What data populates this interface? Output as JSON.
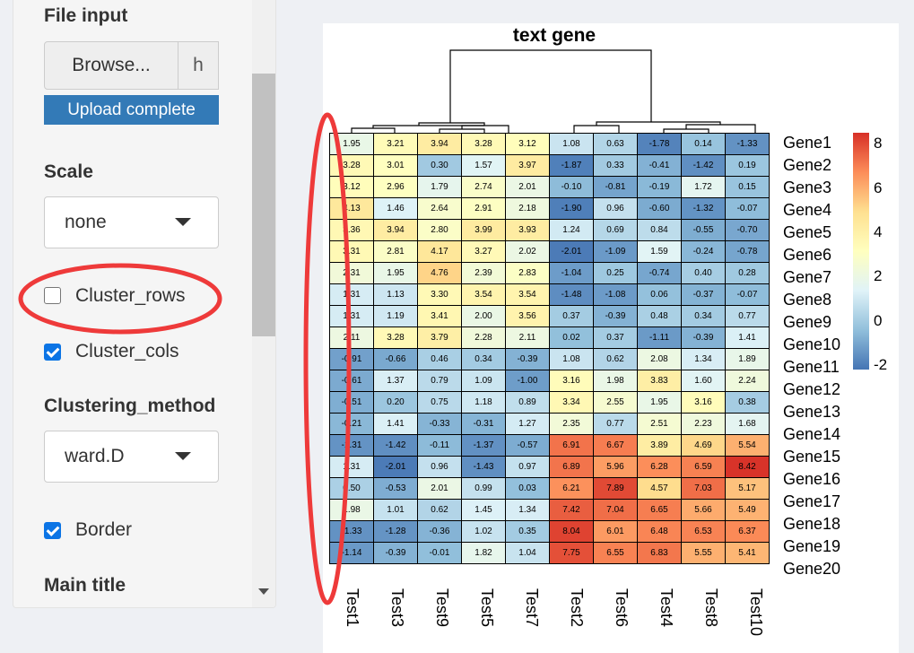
{
  "sidebar": {
    "file_input_label": "File input",
    "browse_label": "Browse...",
    "file_text": "h",
    "upload_status": "Upload complete",
    "scale_label": "Scale",
    "scale_value": "none",
    "cluster_rows_label": "Cluster_rows",
    "cluster_rows_checked": false,
    "cluster_cols_label": "Cluster_cols",
    "cluster_cols_checked": true,
    "clustering_method_label": "Clustering_method",
    "clustering_method_value": "ward.D",
    "border_label": "Border",
    "border_checked": true,
    "main_title_label": "Main title"
  },
  "colors": {
    "low": "#4575b4",
    "mid": "#ffffbf",
    "high": "#d73027",
    "annotation": "#ee3a3a"
  },
  "heatmap": {
    "title": "text gene",
    "columns": [
      "Test1",
      "Test3",
      "Test9",
      "Test5",
      "Test7",
      "Test2",
      "Test6",
      "Test4",
      "Test8",
      "Test10"
    ],
    "rows": [
      "Gene1",
      "Gene2",
      "Gene3",
      "Gene4",
      "Gene5",
      "Gene6",
      "Gene7",
      "Gene8",
      "Gene9",
      "Gene10",
      "Gene11",
      "Gene12",
      "Gene13",
      "Gene14",
      "Gene15",
      "Gene16",
      "Gene17",
      "Gene18",
      "Gene19",
      "Gene20"
    ],
    "values": [
      [
        1.95,
        3.21,
        3.94,
        3.28,
        3.12,
        1.08,
        0.63,
        -1.78,
        0.14,
        -1.33
      ],
      [
        3.28,
        3.01,
        0.3,
        1.57,
        3.97,
        -1.87,
        0.33,
        -0.41,
        -1.42,
        0.19
      ],
      [
        3.12,
        2.96,
        1.79,
        2.74,
        2.01,
        -0.1,
        -0.81,
        -0.19,
        1.72,
        0.15
      ],
      [
        4.13,
        1.46,
        2.64,
        2.91,
        2.18,
        -1.9,
        0.96,
        -0.6,
        -1.32,
        -0.07
      ],
      [
        3.36,
        3.94,
        2.8,
        3.99,
        3.93,
        1.24,
        0.69,
        0.84,
        -0.55,
        -0.7
      ],
      [
        3.31,
        2.81,
        4.17,
        3.27,
        2.02,
        -2.01,
        -1.09,
        1.59,
        -0.24,
        -0.78
      ],
      [
        2.31,
        1.95,
        4.76,
        2.39,
        2.83,
        -1.04,
        0.25,
        -0.74,
        0.4,
        0.28
      ],
      [
        1.31,
        1.13,
        3.3,
        3.54,
        3.54,
        -1.48,
        -1.08,
        0.06,
        -0.37,
        -0.07
      ],
      [
        1.31,
        1.19,
        3.41,
        2.0,
        3.56,
        0.37,
        -0.39,
        0.48,
        0.34,
        0.77
      ],
      [
        2.11,
        3.28,
        3.79,
        2.28,
        2.11,
        0.02,
        0.37,
        -1.11,
        -0.39,
        1.41
      ],
      [
        -0.91,
        -0.66,
        0.46,
        0.34,
        -0.39,
        1.08,
        0.62,
        2.08,
        1.34,
        1.89
      ],
      [
        -0.61,
        1.37,
        0.79,
        1.09,
        -1.0,
        3.16,
        1.98,
        3.83,
        1.6,
        2.24
      ],
      [
        -0.51,
        0.2,
        0.75,
        1.18,
        0.89,
        3.34,
        2.55,
        1.95,
        3.16,
        0.38
      ],
      [
        -0.21,
        1.41,
        -0.33,
        -0.31,
        1.27,
        2.35,
        0.77,
        2.51,
        2.23,
        1.68
      ],
      [
        -1.31,
        -1.42,
        -0.11,
        -1.37,
        -0.57,
        6.91,
        6.67,
        3.89,
        4.69,
        5.54
      ],
      [
        1.31,
        -2.01,
        0.96,
        -1.43,
        0.97,
        6.89,
        5.96,
        6.28,
        6.59,
        8.42
      ],
      [
        0.5,
        -0.53,
        2.01,
        0.99,
        0.03,
        6.21,
        7.89,
        4.57,
        7.03,
        5.17
      ],
      [
        1.98,
        1.01,
        0.62,
        1.45,
        1.34,
        7.42,
        7.04,
        6.65,
        5.66,
        5.49
      ],
      [
        -1.33,
        -1.28,
        -0.36,
        1.02,
        0.35,
        8.04,
        6.01,
        6.48,
        6.53,
        6.37
      ],
      [
        -1.14,
        -0.39,
        -0.01,
        1.82,
        1.04,
        7.75,
        6.55,
        6.83,
        5.55,
        5.41
      ]
    ],
    "legend_ticks": [
      8,
      6,
      4,
      2,
      0,
      -2
    ],
    "legend_range": [
      -2.2,
      8.5
    ]
  }
}
